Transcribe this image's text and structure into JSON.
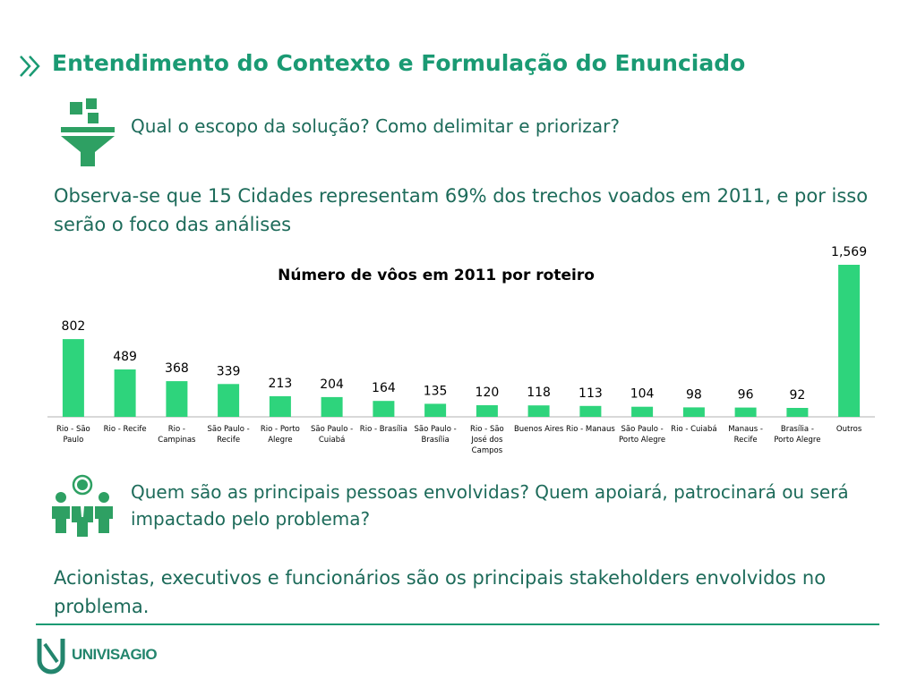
{
  "header": {
    "title": "Entendimento do Contexto e Formulação do Enunciado",
    "chevron_icon": "double-chevron-right-icon"
  },
  "section1": {
    "icon": "funnel-icon",
    "question": "Qual o escopo da solução? Como delimitar e priorizar?",
    "answer": "Observa-se que 15 Cidades representam 69% dos trechos voados em 2011, e por isso serão o foco das análises"
  },
  "chart_data": {
    "type": "bar",
    "title": "Número de vôos em 2011 por roteiro",
    "categories": [
      "Rio - São Paulo",
      "Rio - Recife",
      "Rio - Campinas",
      "São Paulo - Recife",
      "Rio - Porto Alegre",
      "São Paulo - Cuiabá",
      "Rio - Brasília",
      "São Paulo - Brasília",
      "Rio - São José dos Campos",
      "Buenos Aires",
      "Rio - Manaus",
      "São Paulo - Porto Alegre",
      "Rio - Cuiabá",
      "Manaus - Recife",
      "Brasília - Porto Alegre",
      "Outros"
    ],
    "values": [
      802,
      489,
      368,
      339,
      213,
      204,
      164,
      135,
      120,
      118,
      113,
      104,
      98,
      96,
      92,
      1569
    ],
    "value_labels": [
      "802",
      "489",
      "368",
      "339",
      "213",
      "204",
      "164",
      "135",
      "120",
      "118",
      "113",
      "104",
      "98",
      "96",
      "92",
      "1,569"
    ],
    "bar_color": "#2ed47c",
    "grid": false,
    "legend": "none"
  },
  "section2": {
    "icon": "people-group-icon",
    "question": "Quem são as principais pessoas envolvidas? Quem apoiará, patrocinará ou será impactado pelo problema?",
    "answer": "Acionistas, executivos e funcionários são os principais stakeholders envolvidos no problema."
  },
  "footer": {
    "logo_icon": "univisagio-logo-icon",
    "logo_text": "UNIVISAGIO"
  },
  "colors": {
    "accent": "#1a9a73",
    "text": "#1d6b5a",
    "bar": "#2ed47c"
  }
}
